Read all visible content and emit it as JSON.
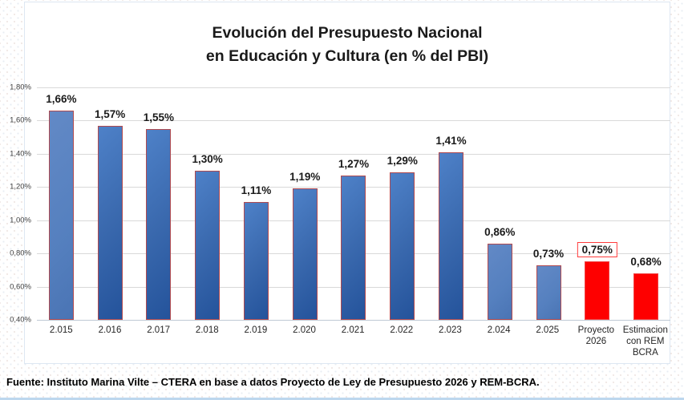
{
  "chart_data": {
    "type": "bar",
    "title_line1": "Evolución del Presupuesto Nacional",
    "title_line2": "en Educación y Cultura (en % del PBI)",
    "categories": [
      "2.015",
      "2.016",
      "2.017",
      "2.018",
      "2.019",
      "2.020",
      "2.021",
      "2.022",
      "2.023",
      "2.024",
      "2.025",
      "Proyecto 2026",
      "Estimacion con REM BCRA"
    ],
    "values": [
      1.66,
      1.57,
      1.55,
      1.3,
      1.11,
      1.19,
      1.27,
      1.29,
      1.41,
      0.86,
      0.73,
      0.75,
      0.68
    ],
    "value_labels": [
      "1,66%",
      "1,57%",
      "1,55%",
      "1,30%",
      "1,11%",
      "1,19%",
      "1,27%",
      "1,29%",
      "1,41%",
      "0,86%",
      "0,73%",
      "0,75%",
      "0,68%"
    ],
    "bar_styles": [
      "light",
      "dark",
      "dark",
      "dark",
      "dark",
      "dark",
      "dark",
      "dark",
      "dark",
      "light",
      "light",
      "red",
      "red"
    ],
    "boxed_label_index": 11,
    "y_ticks": [
      "1,80%",
      "1,60%",
      "1,40%",
      "1,20%",
      "1,00%",
      "0,80%",
      "0,60%",
      "0,40%"
    ],
    "ylim": [
      0.4,
      1.8
    ],
    "grid": true,
    "legend": "none",
    "xlabel": "",
    "ylabel": ""
  },
  "colors": {
    "bar_blue_light": "#5580bf",
    "bar_blue_dark": "#2d5b9e",
    "bar_border": "#b14a4f",
    "bar_red": "#fe0000",
    "gridline": "#d9d9d9",
    "label_box_border": "#ff3b3b",
    "bottom_accent": "#bdd7ee"
  },
  "footer": {
    "source": "Fuente: Instituto Marina Vilte – CTERA en base a datos Proyecto de Ley de Presupuesto 2026 y REM-BCRA."
  }
}
